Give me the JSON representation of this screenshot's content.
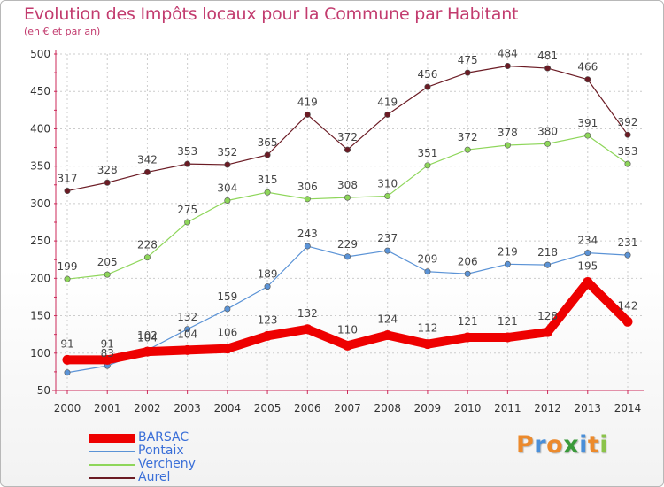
{
  "chart_data": {
    "type": "line",
    "title": "Evolution des Impôts locaux pour la Commune par Habitant",
    "subtitle": "(en € et par an)",
    "x": [
      "2000",
      "2001",
      "2002",
      "2003",
      "2004",
      "2005",
      "2006",
      "2007",
      "2008",
      "2009",
      "2010",
      "2011",
      "2012",
      "2013",
      "2014"
    ],
    "ylim": [
      50,
      500
    ],
    "yticks": [
      50,
      100,
      150,
      200,
      250,
      300,
      350,
      400,
      450,
      500
    ],
    "grid": true,
    "legend_position": "bottom-left",
    "series": [
      {
        "name": "Aurel",
        "color": "#6b1b24",
        "values": [
          317,
          328,
          342,
          353,
          352,
          365,
          419,
          372,
          419,
          456,
          475,
          484,
          481,
          466,
          392
        ]
      },
      {
        "name": "Vercheny",
        "color": "#8ed65a",
        "values": [
          199,
          205,
          228,
          275,
          304,
          315,
          306,
          308,
          310,
          351,
          372,
          378,
          380,
          391,
          353
        ]
      },
      {
        "name": "Pontaix",
        "color": "#5b93d6",
        "values": [
          74,
          83,
          104,
          132,
          159,
          189,
          243,
          229,
          237,
          209,
          206,
          219,
          218,
          234,
          231
        ]
      },
      {
        "name": "BARSAC",
        "color": "#ee0000",
        "values": [
          91,
          91,
          102,
          104,
          106,
          123,
          132,
          110,
          124,
          112,
          121,
          121,
          128,
          195,
          142
        ]
      }
    ],
    "point_labels": {
      "Aurel": [
        "317",
        "328",
        "342",
        "353",
        "352",
        "365",
        "419",
        "372",
        "419",
        "456",
        "475",
        "484",
        "481",
        "466",
        "392"
      ],
      "Vercheny": [
        "199",
        "205",
        "228",
        "275",
        "304",
        "315",
        "306",
        "308",
        "310",
        "351",
        "372",
        "378",
        "380",
        "391",
        "353"
      ],
      "Pontaix": [
        "",
        "83",
        "104",
        "132",
        "159",
        "189",
        "243",
        "229",
        "237",
        "209",
        "206",
        "219",
        "218",
        "234",
        "231"
      ],
      "BARSAC": [
        "91",
        "91",
        "102",
        "104",
        "106",
        "123",
        "132",
        "110",
        "124",
        "112",
        "121",
        "121",
        "128",
        "195",
        "142"
      ]
    }
  },
  "legend": {
    "items": [
      {
        "label": "BARSAC",
        "color": "#ee0000"
      },
      {
        "label": "Pontaix",
        "color": "#5b93d6"
      },
      {
        "label": "Vercheny",
        "color": "#8ed65a"
      },
      {
        "label": "Aurel",
        "color": "#6b1b24"
      }
    ]
  },
  "logo": {
    "letters": [
      "P",
      "r",
      "o",
      "x",
      "i",
      "t",
      "i"
    ],
    "colors": [
      "#ec8a2c",
      "#4a8fd9",
      "#ec8a2c",
      "#3a9a3a",
      "#4a8fd9",
      "#ec8a2c",
      "#8bc34a"
    ]
  }
}
